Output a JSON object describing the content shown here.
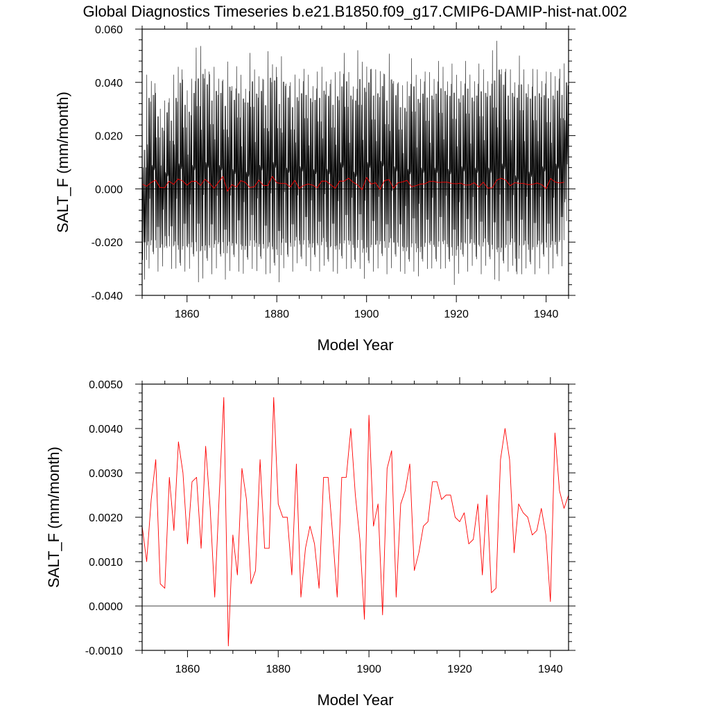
{
  "figure": {
    "title": "Global Diagnostics Timeseries b.e21.B1850.f09_g17.CMIP6-DAMIP-hist-nat.002"
  },
  "chart_data": [
    {
      "type": "line",
      "title": "Global Diagnostics Timeseries b.e21.B1850.f09_g17.CMIP6-DAMIP-hist-nat.002",
      "xlabel": "Model Year",
      "ylabel": "SALT_F (mm/month)",
      "xlim": [
        1850,
        1945
      ],
      "ylim": [
        -0.04,
        0.06
      ],
      "xticks": [
        1860,
        1880,
        1900,
        1920,
        1940
      ],
      "xtick_labels": [
        "1860",
        "1880",
        "1900",
        "1920",
        "1940"
      ],
      "yticks": [
        -0.04,
        -0.02,
        0.0,
        0.02,
        0.04,
        0.06
      ],
      "ytick_labels": [
        "-0.040",
        "-0.020",
        "0.000",
        "0.020",
        "0.040",
        "0.060"
      ],
      "reference_line": 0,
      "series": [
        {
          "color": "#000000",
          "sampling": "monthly",
          "start": 1850.04,
          "step": 0.0833333,
          "annual_max": [
            0.022,
            0.044,
            0.045,
            0.036,
            0.031,
            0.037,
            0.034,
            0.044,
            0.051,
            0.041,
            0.038,
            0.046,
            0.053,
            0.055,
            0.05,
            0.043,
            0.047,
            0.046,
            0.041,
            0.049,
            0.043,
            0.046,
            0.044,
            0.042,
            0.051,
            0.046,
            0.047,
            0.041,
            0.053,
            0.052,
            0.042,
            0.051,
            0.044,
            0.04,
            0.044,
            0.046,
            0.045,
            0.044,
            0.043,
            0.044,
            0.047,
            0.045,
            0.041,
            0.045,
            0.049,
            0.051,
            0.045,
            0.043,
            0.052,
            0.049,
            0.051,
            0.045,
            0.046,
            0.049,
            0.043,
            0.052,
            0.045,
            0.04,
            0.04,
            0.045,
            0.049,
            0.044,
            0.046,
            0.044,
            0.045,
            0.046,
            0.048,
            0.047,
            0.045,
            0.047,
            0.044,
            0.045,
            0.048,
            0.044,
            0.045,
            0.047,
            0.046,
            0.045,
            0.052,
            0.057,
            0.05,
            0.045,
            0.046,
            0.045,
            0.05,
            0.046,
            0.044,
            0.045,
            0.046,
            0.045,
            0.044,
            0.045,
            0.047,
            0.045,
            0.048
          ],
          "annual_min": [
            -0.034,
            -0.031,
            -0.029,
            -0.031,
            -0.03,
            -0.026,
            -0.03,
            -0.031,
            -0.034,
            -0.031,
            -0.031,
            -0.03,
            -0.035,
            -0.035,
            -0.032,
            -0.032,
            -0.031,
            -0.03,
            -0.034,
            -0.032,
            -0.03,
            -0.031,
            -0.033,
            -0.031,
            -0.03,
            -0.032,
            -0.031,
            -0.032,
            -0.033,
            -0.034,
            -0.035,
            -0.031,
            -0.03,
            -0.031,
            -0.029,
            -0.031,
            -0.029,
            -0.032,
            -0.03,
            -0.031,
            -0.03,
            -0.032,
            -0.031,
            -0.033,
            -0.031,
            -0.03,
            -0.031,
            -0.032,
            -0.03,
            -0.035,
            -0.033,
            -0.031,
            -0.031,
            -0.03,
            -0.032,
            -0.031,
            -0.03,
            -0.031,
            -0.033,
            -0.032,
            -0.031,
            -0.034,
            -0.032,
            -0.03,
            -0.031,
            -0.032,
            -0.03,
            -0.031,
            -0.032,
            -0.036,
            -0.033,
            -0.03,
            -0.031,
            -0.03,
            -0.031,
            -0.032,
            -0.03,
            -0.031,
            -0.034,
            -0.036,
            -0.033,
            -0.031,
            -0.03,
            -0.037,
            -0.032,
            -0.031,
            -0.033,
            -0.032,
            -0.031,
            -0.03,
            -0.032,
            -0.031,
            -0.03,
            -0.029,
            -0.013
          ]
        },
        {
          "color": "#ff0000",
          "sampling": "annual",
          "x": [
            1850,
            1851,
            1852,
            1853,
            1854,
            1855,
            1856,
            1857,
            1858,
            1859,
            1860,
            1861,
            1862,
            1863,
            1864,
            1865,
            1866,
            1867,
            1868,
            1869,
            1870,
            1871,
            1872,
            1873,
            1874,
            1875,
            1876,
            1877,
            1878,
            1879,
            1880,
            1881,
            1882,
            1883,
            1884,
            1885,
            1886,
            1887,
            1888,
            1889,
            1890,
            1891,
            1892,
            1893,
            1894,
            1895,
            1896,
            1897,
            1898,
            1899,
            1900,
            1901,
            1902,
            1903,
            1904,
            1905,
            1906,
            1907,
            1908,
            1909,
            1910,
            1911,
            1912,
            1913,
            1914,
            1915,
            1916,
            1917,
            1918,
            1919,
            1920,
            1921,
            1922,
            1923,
            1924,
            1925,
            1926,
            1927,
            1928,
            1929,
            1930,
            1931,
            1932,
            1933,
            1934,
            1935,
            1936,
            1937,
            1938,
            1939,
            1940,
            1941,
            1942,
            1943,
            1944
          ],
          "values": [
            0.0018,
            0.001,
            0.0024,
            0.0033,
            0.0005,
            0.0004,
            0.0029,
            0.0017,
            0.0037,
            0.003,
            0.0014,
            0.0028,
            0.0029,
            0.0013,
            0.0036,
            0.0022,
            0.0002,
            0.0025,
            0.0047,
            -0.0009,
            0.0016,
            0.0007,
            0.0031,
            0.0024,
            0.0005,
            0.0008,
            0.0033,
            0.0013,
            0.0013,
            0.0047,
            0.0023,
            0.002,
            0.002,
            0.0007,
            0.0032,
            0.0002,
            0.0013,
            0.0018,
            0.0014,
            0.0004,
            0.0029,
            0.0029,
            0.0016,
            0.0002,
            0.0029,
            0.0029,
            0.004,
            0.0025,
            0.0015,
            -0.0003,
            0.0043,
            0.0018,
            0.0023,
            -0.0002,
            0.0031,
            0.0035,
            0.0002,
            0.0023,
            0.0026,
            0.0032,
            0.0008,
            0.0012,
            0.0018,
            0.0019,
            0.0028,
            0.0028,
            0.0024,
            0.0025,
            0.0025,
            0.002,
            0.0019,
            0.0021,
            0.0014,
            0.0015,
            0.0023,
            0.0007,
            0.0025,
            0.0003,
            0.0004,
            0.0033,
            0.004,
            0.0033,
            0.0012,
            0.0023,
            0.0021,
            0.002,
            0.0016,
            0.0017,
            0.0022,
            0.0016,
            0.0001,
            0.0039,
            0.0026,
            0.0022,
            0.0025
          ]
        }
      ]
    },
    {
      "type": "line",
      "xlabel": "Model Year",
      "ylabel": "SALT_F (mm/month)",
      "xlim": [
        1850,
        1944
      ],
      "ylim": [
        -0.001,
        0.005
      ],
      "xticks": [
        1860,
        1880,
        1900,
        1920,
        1940
      ],
      "xtick_labels": [
        "1860",
        "1880",
        "1900",
        "1920",
        "1940"
      ],
      "yticks": [
        -0.001,
        0.0,
        0.001,
        0.002,
        0.003,
        0.004,
        0.005
      ],
      "ytick_labels": [
        "-0.0010",
        "0.0000",
        "0.0010",
        "0.0020",
        "0.0030",
        "0.0040",
        "0.0050"
      ],
      "reference_line": 0,
      "series": [
        {
          "color": "#ff0000",
          "x": [
            1850,
            1851,
            1852,
            1853,
            1854,
            1855,
            1856,
            1857,
            1858,
            1859,
            1860,
            1861,
            1862,
            1863,
            1864,
            1865,
            1866,
            1867,
            1868,
            1869,
            1870,
            1871,
            1872,
            1873,
            1874,
            1875,
            1876,
            1877,
            1878,
            1879,
            1880,
            1881,
            1882,
            1883,
            1884,
            1885,
            1886,
            1887,
            1888,
            1889,
            1890,
            1891,
            1892,
            1893,
            1894,
            1895,
            1896,
            1897,
            1898,
            1899,
            1900,
            1901,
            1902,
            1903,
            1904,
            1905,
            1906,
            1907,
            1908,
            1909,
            1910,
            1911,
            1912,
            1913,
            1914,
            1915,
            1916,
            1917,
            1918,
            1919,
            1920,
            1921,
            1922,
            1923,
            1924,
            1925,
            1926,
            1927,
            1928,
            1929,
            1930,
            1931,
            1932,
            1933,
            1934,
            1935,
            1936,
            1937,
            1938,
            1939,
            1940,
            1941,
            1942,
            1943,
            1944
          ],
          "values": [
            0.0018,
            0.001,
            0.0024,
            0.0033,
            0.0005,
            0.0004,
            0.0029,
            0.0017,
            0.0037,
            0.003,
            0.0014,
            0.0028,
            0.0029,
            0.0013,
            0.0036,
            0.0022,
            0.0002,
            0.0025,
            0.0047,
            -0.0009,
            0.0016,
            0.0007,
            0.0031,
            0.0024,
            0.0005,
            0.0008,
            0.0033,
            0.0013,
            0.0013,
            0.0047,
            0.0023,
            0.002,
            0.002,
            0.0007,
            0.0032,
            0.0002,
            0.0013,
            0.0018,
            0.0014,
            0.0004,
            0.0029,
            0.0029,
            0.0016,
            0.0002,
            0.0029,
            0.0029,
            0.004,
            0.0025,
            0.0015,
            -0.0003,
            0.0043,
            0.0018,
            0.0023,
            -0.0002,
            0.0031,
            0.0035,
            0.0002,
            0.0023,
            0.0026,
            0.0032,
            0.0008,
            0.0012,
            0.0018,
            0.0019,
            0.0028,
            0.0028,
            0.0024,
            0.0025,
            0.0025,
            0.002,
            0.0019,
            0.0021,
            0.0014,
            0.0015,
            0.0023,
            0.0007,
            0.0025,
            0.0003,
            0.0004,
            0.0033,
            0.004,
            0.0033,
            0.0012,
            0.0023,
            0.0021,
            0.002,
            0.0016,
            0.0017,
            0.0022,
            0.0016,
            0.0001,
            0.0039,
            0.0026,
            0.0022,
            0.0025
          ]
        }
      ]
    }
  ]
}
